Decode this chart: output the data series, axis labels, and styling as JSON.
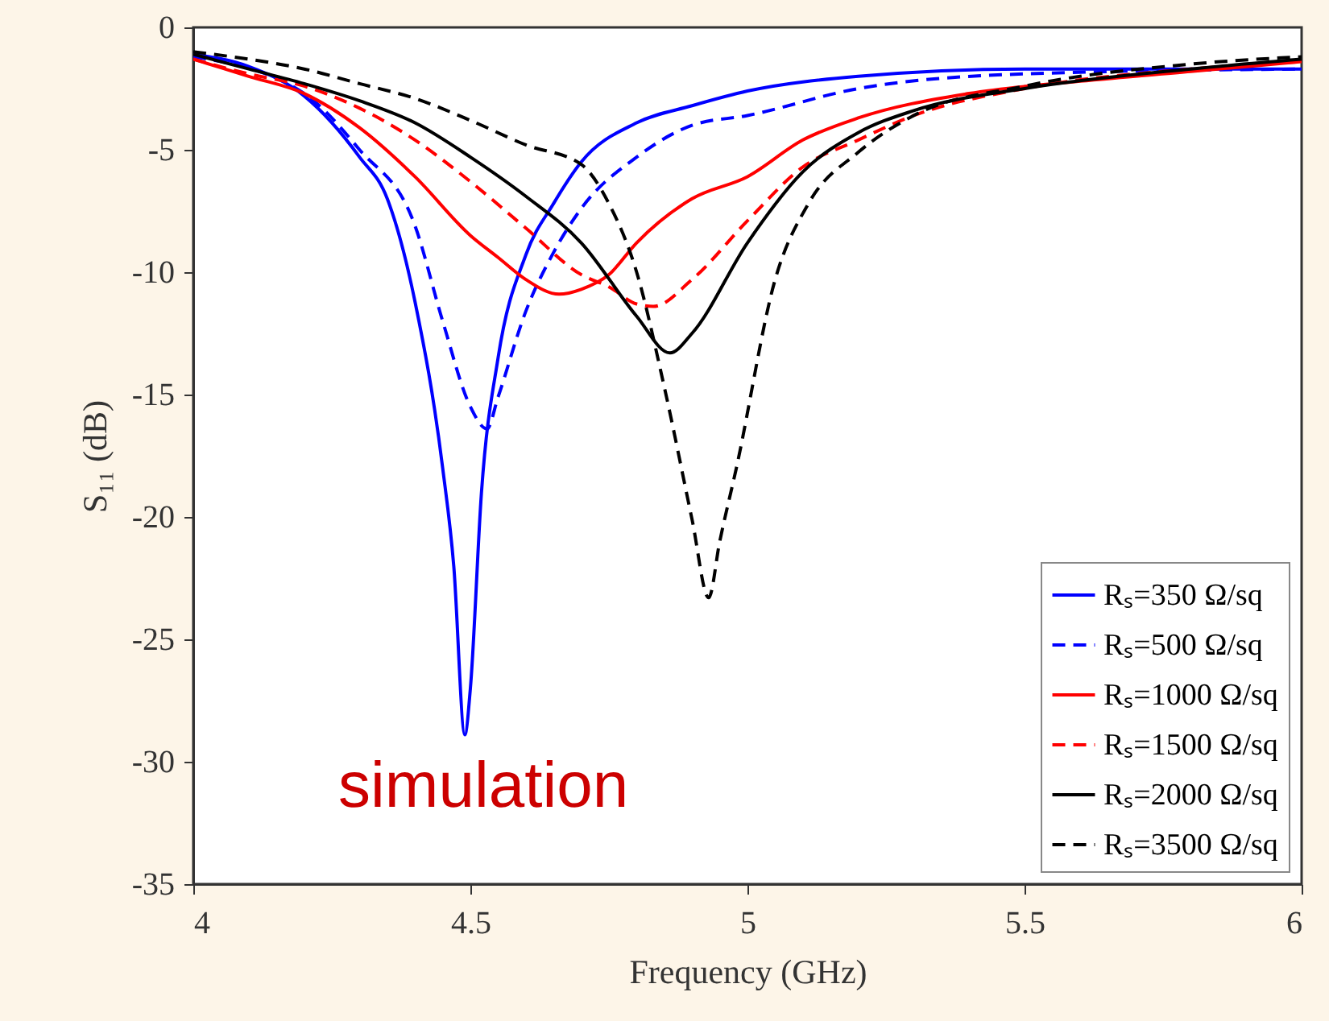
{
  "chart_data": {
    "type": "line",
    "xlabel": "Frequency (GHz)",
    "ylabel": "S₁₁ (dB)",
    "xlim": [
      4,
      6
    ],
    "xticks": [
      4,
      4.5,
      5,
      5.5,
      6
    ],
    "ylim": [
      -35,
      0
    ],
    "yticks": [
      -35,
      -30,
      -25,
      -20,
      -15,
      -10,
      -5,
      0
    ],
    "legend": "bottom right",
    "grid": false,
    "annotations": [
      "simulation"
    ],
    "series": [
      {
        "name": "Rₛ=350 Ω/sq",
        "color": "#0000ff",
        "line_style": "solid",
        "x": [
          4.0,
          4.1,
          4.2,
          4.3,
          4.35,
          4.4,
          4.45,
          4.47,
          4.49,
          4.5,
          4.52,
          4.55,
          4.6,
          4.65,
          4.7,
          4.8,
          4.9,
          5.0,
          5.2,
          5.5,
          6.0
        ],
        "values": [
          -1.1,
          -1.6,
          -2.8,
          -5.3,
          -7.0,
          -11.2,
          -18.0,
          -22.0,
          -28.9,
          -27.0,
          -19.0,
          -13.5,
          -9.3,
          -7.2,
          -5.5,
          -3.9,
          -3.2,
          -2.6,
          -2.0,
          -1.7,
          -1.7
        ]
      },
      {
        "name": "Rₛ=500 Ω/sq",
        "color": "#0000ff",
        "line_style": "dashed",
        "x": [
          4.0,
          4.2,
          4.3,
          4.4,
          4.45,
          4.5,
          4.53,
          4.55,
          4.6,
          4.65,
          4.7,
          4.8,
          4.9,
          5.0,
          5.2,
          5.5,
          6.0
        ],
        "values": [
          -1.2,
          -2.7,
          -5.0,
          -8.1,
          -12.0,
          -15.5,
          -16.4,
          -15.1,
          -11.6,
          -9.2,
          -7.4,
          -5.3,
          -4.0,
          -3.6,
          -2.5,
          -1.9,
          -1.7
        ]
      },
      {
        "name": "Rₛ=1000 Ω/sq",
        "color": "#ff0000",
        "line_style": "solid",
        "x": [
          4.0,
          4.1,
          4.2,
          4.3,
          4.4,
          4.5,
          4.55,
          4.6,
          4.66,
          4.7,
          4.75,
          4.8,
          4.9,
          5.0,
          5.1,
          5.2,
          5.4,
          5.6,
          5.8,
          6.0
        ],
        "values": [
          -1.3,
          -2.0,
          -2.7,
          -4.1,
          -6.1,
          -8.5,
          -9.4,
          -10.3,
          -10.9,
          -10.7,
          -10.1,
          -8.8,
          -7.0,
          -6.1,
          -4.6,
          -3.7,
          -2.7,
          -2.2,
          -1.8,
          -1.4
        ]
      },
      {
        "name": "Rₛ=1500 Ω/sq",
        "color": "#ff0000",
        "line_style": "dashed",
        "x": [
          4.0,
          4.1,
          4.2,
          4.3,
          4.4,
          4.5,
          4.6,
          4.7,
          4.75,
          4.8,
          4.83,
          4.9,
          5.0,
          5.1,
          5.2,
          5.3,
          5.5,
          5.8,
          6.0
        ],
        "values": [
          -1.3,
          -1.9,
          -2.4,
          -3.3,
          -4.6,
          -6.3,
          -8.2,
          -10.1,
          -10.6,
          -11.3,
          -11.4,
          -10.3,
          -7.9,
          -5.7,
          -4.6,
          -3.6,
          -2.5,
          -1.7,
          -1.4
        ]
      },
      {
        "name": "Rₛ=2000 Ω/sq",
        "color": "#000000",
        "line_style": "solid",
        "x": [
          4.0,
          4.1,
          4.2,
          4.3,
          4.4,
          4.5,
          4.6,
          4.7,
          4.8,
          4.86,
          4.9,
          5.0,
          5.1,
          5.2,
          5.3,
          5.5,
          5.8,
          6.0
        ],
        "values": [
          -1.1,
          -1.7,
          -2.3,
          -3.0,
          -3.9,
          -5.3,
          -6.9,
          -8.8,
          -11.8,
          -13.3,
          -12.5,
          -8.8,
          -5.9,
          -4.3,
          -3.4,
          -2.5,
          -1.7,
          -1.3
        ]
      },
      {
        "name": "Rₛ=3500 Ω/sq",
        "color": "#000000",
        "line_style": "dashed",
        "x": [
          4.0,
          4.1,
          4.2,
          4.3,
          4.4,
          4.5,
          4.6,
          4.7,
          4.75,
          4.8,
          4.85,
          4.9,
          4.93,
          4.95,
          4.98,
          5.05,
          5.11,
          5.2,
          5.3,
          5.5,
          5.8,
          6.0
        ],
        "values": [
          -1.0,
          -1.3,
          -1.7,
          -2.3,
          -2.9,
          -3.8,
          -4.8,
          -5.6,
          -7.2,
          -10.0,
          -14.7,
          -20.1,
          -23.3,
          -21.0,
          -18.0,
          -10.3,
          -7.2,
          -5.1,
          -3.6,
          -2.4,
          -1.5,
          -1.2
        ]
      }
    ]
  }
}
